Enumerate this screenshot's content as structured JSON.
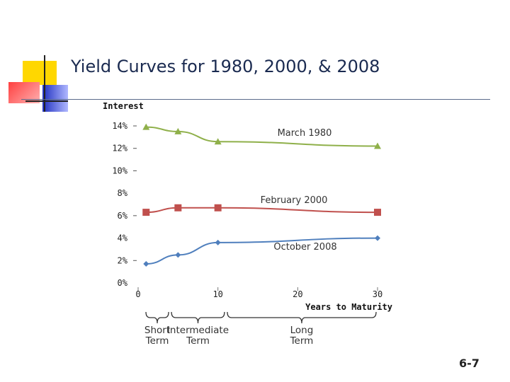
{
  "slide": {
    "title": "Yield Curves for 1980, 2000, &  2008",
    "number": "6-7"
  },
  "colors": {
    "march_1980": "#8fb04a",
    "february_2000": "#c0504d",
    "october_2008": "#4f7fbd",
    "deco_yellow": "#ffd700",
    "deco_red": "#ff5050",
    "deco_blue": "#3a4fcf"
  },
  "chart_data": {
    "type": "line",
    "ylabel": "Interest",
    "xlabel": "Years to Maturity",
    "xlim": [
      0,
      30
    ],
    "ylim": [
      0,
      14
    ],
    "x_ticks": [
      "0",
      "10",
      "20",
      "30"
    ],
    "y_ticks": [
      "0%",
      "2%",
      "4%",
      "6%",
      "8%",
      "10%",
      "12%",
      "14%"
    ],
    "series": [
      {
        "name": "March 1980",
        "marker": "triangle",
        "color_key": "march_1980",
        "x": [
          1,
          5,
          10,
          30
        ],
        "y": [
          13.9,
          13.5,
          12.6,
          12.2
        ]
      },
      {
        "name": "February 2000",
        "marker": "square",
        "color_key": "february_2000",
        "x": [
          1,
          5,
          10,
          30
        ],
        "y": [
          6.3,
          6.7,
          6.7,
          6.3
        ]
      },
      {
        "name": "October 2008",
        "marker": "diamond",
        "color_key": "october_2008",
        "x": [
          1,
          5,
          10,
          30
        ],
        "y": [
          1.7,
          2.5,
          3.6,
          4.0
        ]
      }
    ],
    "term_braces": [
      {
        "label_lines": [
          "Short",
          "Term"
        ],
        "from": 0.8,
        "to": 4
      },
      {
        "label_lines": [
          "Intermediate",
          "Term"
        ],
        "from": 4,
        "to": 11
      },
      {
        "label_lines": [
          "Long",
          "Term"
        ],
        "from": 11,
        "to": 30
      }
    ],
    "grid": false
  }
}
